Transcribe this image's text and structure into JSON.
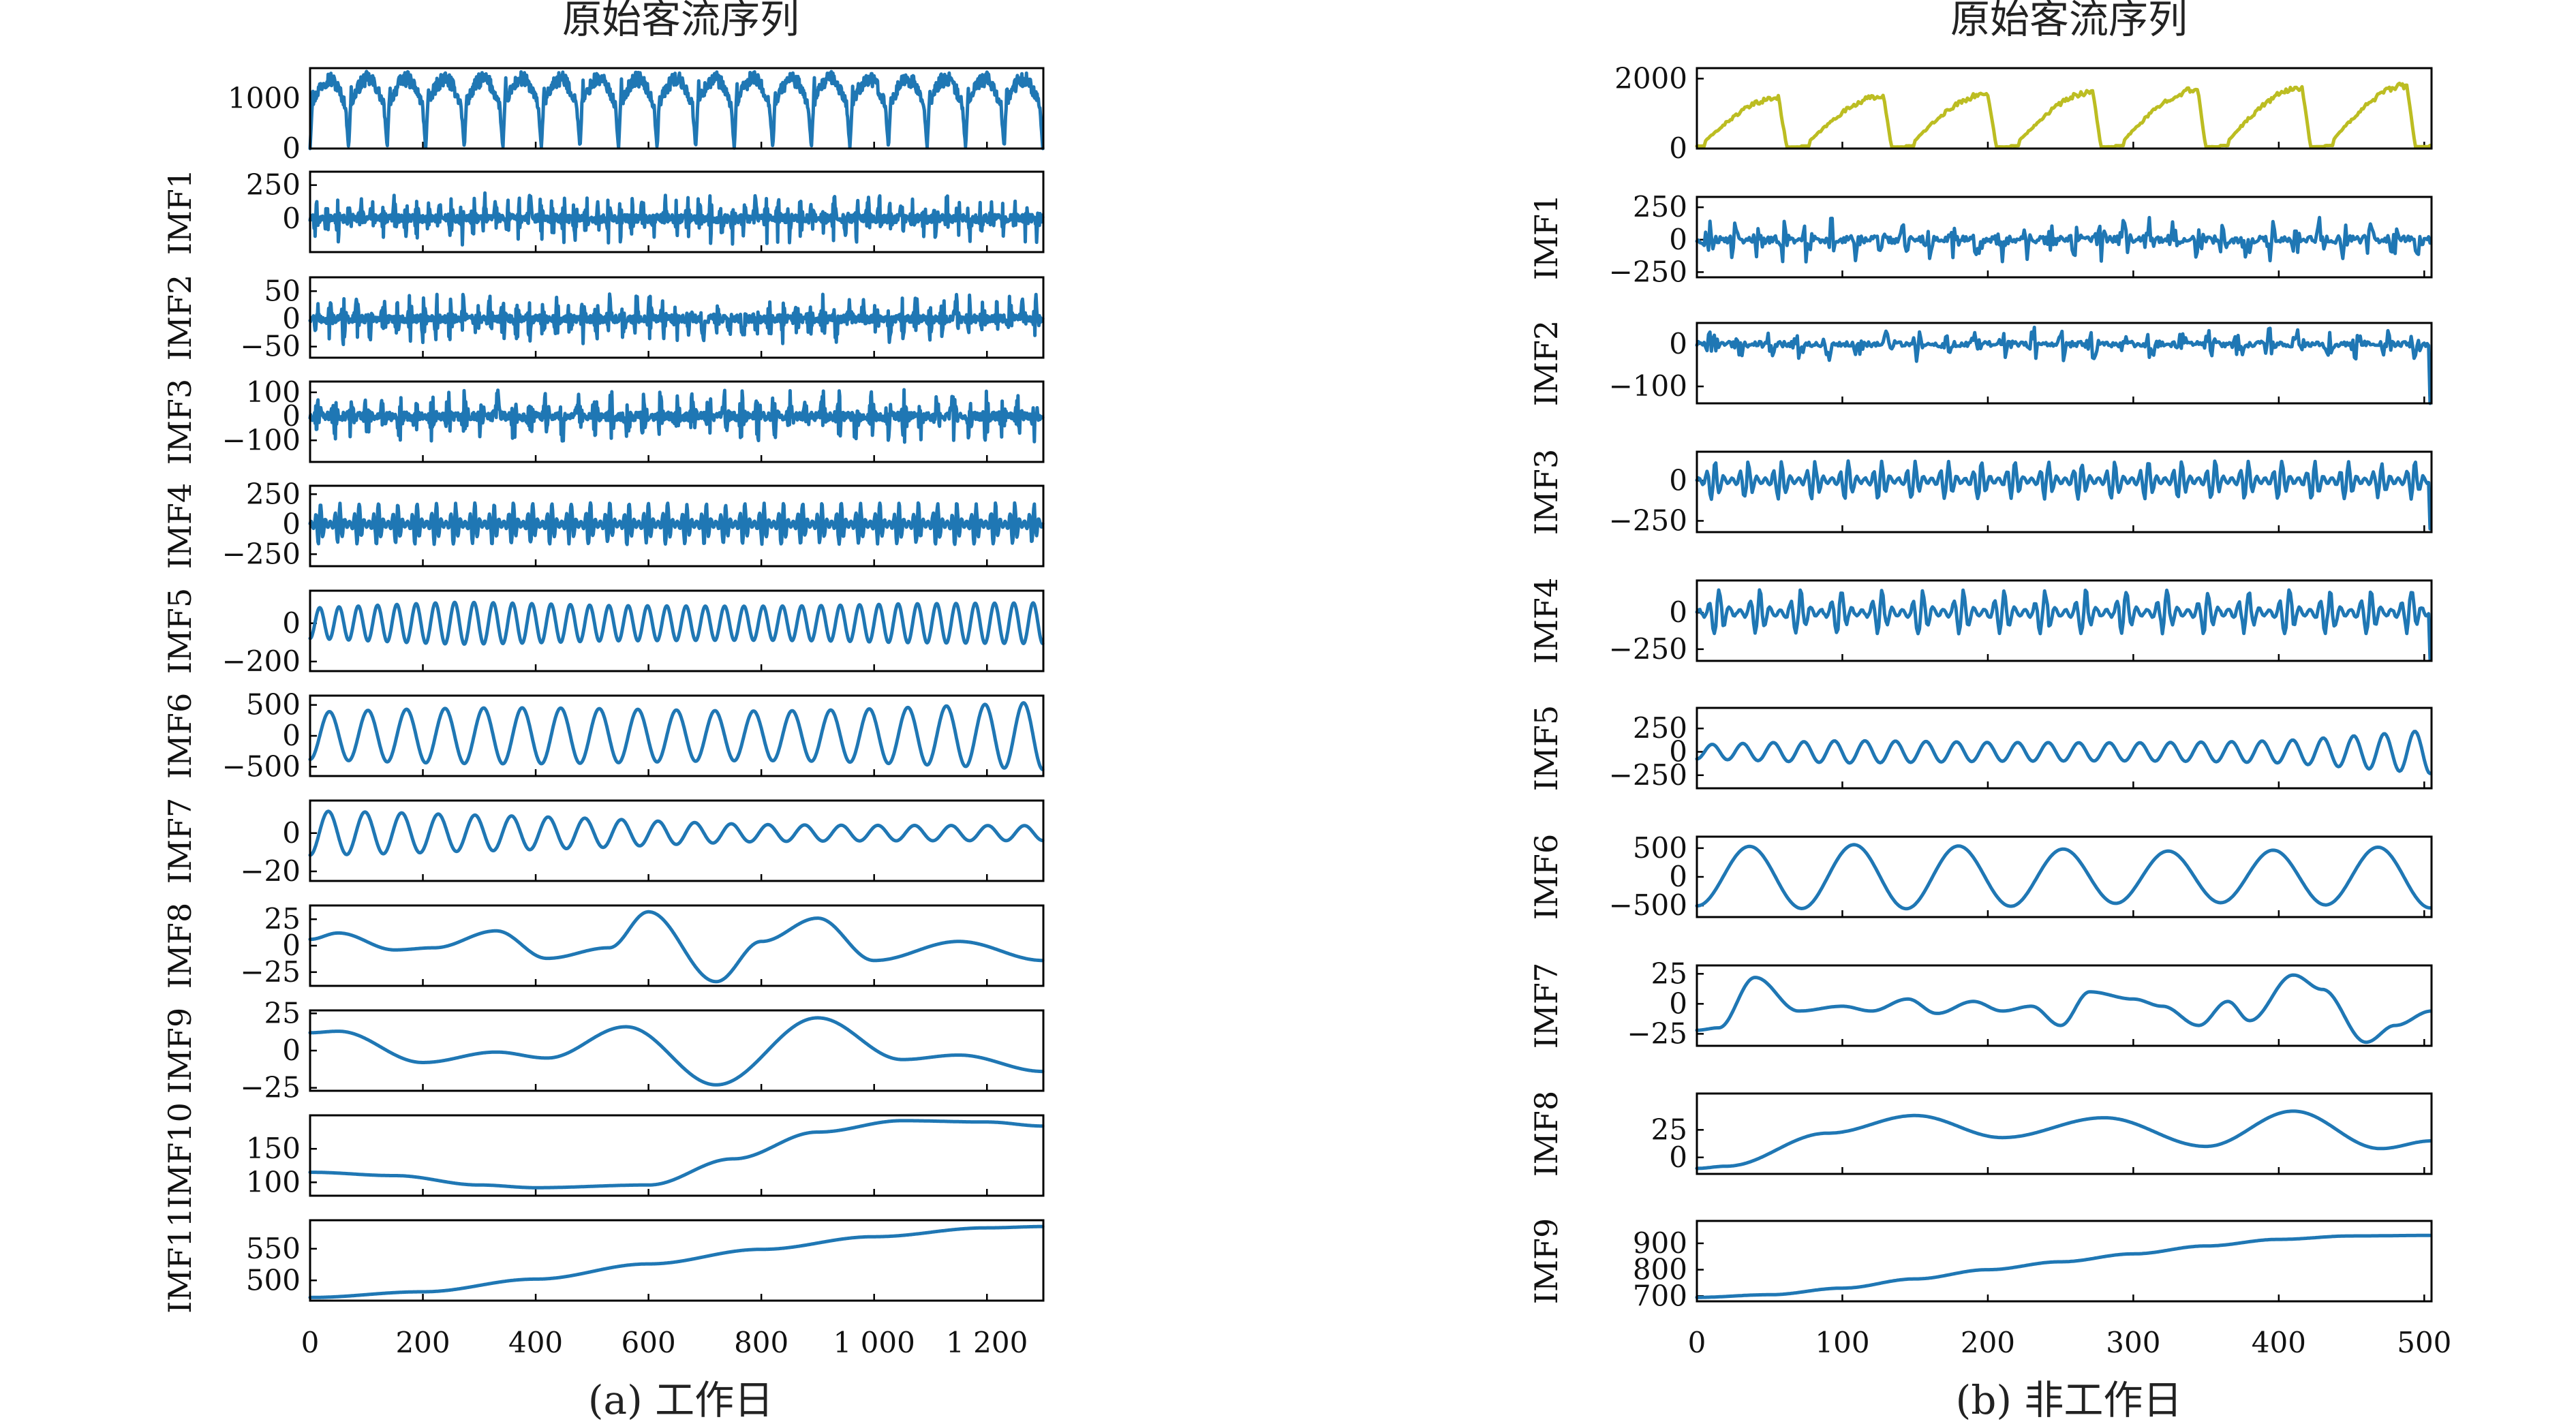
{
  "colors": {
    "imf": "#1f77b4",
    "original_b": "#bcbd22",
    "axis": "#000000"
  },
  "chart_data": [
    {
      "type": "line",
      "title": "原始客流序列",
      "caption": "(a) 工作日",
      "x_ticks": [
        0,
        200,
        400,
        600,
        800,
        1000,
        1200
      ],
      "x_tick_labels": [
        "0",
        "200",
        "400",
        "600",
        "800",
        "1 000",
        "1 200"
      ],
      "xlim": [
        0,
        1300
      ],
      "n_points": 1300,
      "grid": false,
      "subplots": [
        {
          "ylabel": "",
          "ylim": [
            0,
            1600
          ],
          "y_ticks": [
            0,
            1000
          ],
          "y_tick_labels": [
            "0",
            "1000"
          ],
          "color": "#1f77b4",
          "kind": "daily",
          "cycles": 19,
          "amplitude": 1500,
          "envelope": [
            1.0
          ]
        },
        {
          "ylabel": "IMF1",
          "ylim": [
            -250,
            350
          ],
          "y_ticks": [
            0,
            250
          ],
          "y_tick_labels": [
            "0",
            "250"
          ],
          "color": "#1f77b4",
          "kind": "noise",
          "cycles": 65,
          "amplitude": 120,
          "envelope": [
            1.0
          ]
        },
        {
          "ylabel": "IMF2",
          "ylim": [
            -70,
            75
          ],
          "y_ticks": [
            -50,
            0,
            50
          ],
          "y_tick_labels": [
            "−50",
            "0",
            "50"
          ],
          "color": "#1f77b4",
          "kind": "noise",
          "cycles": 55,
          "amplitude": 28,
          "envelope": [
            1.0
          ]
        },
        {
          "ylabel": "IMF3",
          "ylim": [
            -190,
            145
          ],
          "y_ticks": [
            -100,
            0,
            100
          ],
          "y_tick_labels": [
            "−100",
            "0",
            "100"
          ],
          "color": "#1f77b4",
          "kind": "noise",
          "cycles": 45,
          "amplitude": 70,
          "envelope": [
            1.0
          ]
        },
        {
          "ylabel": "IMF4",
          "ylim": [
            -350,
            320
          ],
          "y_ticks": [
            -250,
            0,
            250
          ],
          "y_tick_labels": [
            "−250",
            "0",
            "250"
          ],
          "color": "#1f77b4",
          "kind": "burst",
          "cycles": 38,
          "amplitude": 160,
          "envelope": [
            1.0
          ]
        },
        {
          "ylabel": "IMF5",
          "ylim": [
            -250,
            170
          ],
          "y_ticks": [
            -200,
            0
          ],
          "y_tick_labels": [
            "−200",
            "0"
          ],
          "color": "#1f77b4",
          "kind": "sine",
          "cycles": 38,
          "amplitude": 110,
          "envelope": [
            0.8,
            1.0,
            0.9,
            1.0,
            1.1,
            1.0
          ]
        },
        {
          "ylabel": "IMF6",
          "ylim": [
            -650,
            650
          ],
          "y_ticks": [
            -500,
            0,
            500
          ],
          "y_tick_labels": [
            "−500",
            "0",
            "500"
          ],
          "color": "#1f77b4",
          "kind": "sine",
          "cycles": 19,
          "amplitude": 470,
          "envelope": [
            0.9,
            0.95,
            1.0,
            1.05,
            1.15,
            1.2
          ]
        },
        {
          "ylabel": "IMF7",
          "ylim": [
            -25,
            17
          ],
          "y_ticks": [
            -20,
            0
          ],
          "y_tick_labels": [
            "−20",
            "0"
          ],
          "color": "#1f77b4",
          "kind": "sine",
          "cycles": 20,
          "amplitude": 8,
          "envelope": [
            1.6,
            1.2,
            1.0,
            0.7,
            0.6,
            0.5
          ]
        },
        {
          "ylabel": "IMF8",
          "ylim": [
            -38,
            38
          ],
          "y_ticks": [
            -25,
            0,
            25
          ],
          "y_tick_labels": [
            "−25",
            "0",
            "25"
          ],
          "color": "#1f77b4",
          "kind": "smooth",
          "xs": [
            0,
            50,
            150,
            220,
            330,
            420,
            530,
            600,
            720,
            800,
            900,
            1000,
            1150,
            1300
          ],
          "ys": [
            6,
            12,
            -4,
            -2,
            14,
            -12,
            -2,
            32,
            -34,
            4,
            26,
            -14,
            4,
            -14
          ]
        },
        {
          "ylabel": "IMF9",
          "ylim": [
            -27,
            27
          ],
          "y_ticks": [
            -25,
            0,
            25
          ],
          "y_tick_labels": [
            "−25",
            "0",
            "25"
          ],
          "color": "#1f77b4",
          "kind": "smooth",
          "xs": [
            0,
            50,
            200,
            330,
            420,
            560,
            720,
            900,
            1050,
            1150,
            1300
          ],
          "ys": [
            12,
            13,
            -8,
            -1,
            -5,
            16,
            -23,
            22,
            -6,
            -3,
            -14
          ]
        },
        {
          "ylabel": "IMF10",
          "ylim": [
            80,
            200
          ],
          "y_ticks": [
            100,
            150
          ],
          "y_tick_labels": [
            "100",
            "150"
          ],
          "color": "#1f77b4",
          "kind": "smooth",
          "xs": [
            0,
            150,
            300,
            400,
            600,
            750,
            900,
            1050,
            1200,
            1300
          ],
          "ys": [
            115,
            110,
            96,
            92,
            96,
            135,
            175,
            192,
            190,
            184
          ]
        },
        {
          "ylabel": "IMF11",
          "ylim": [
            468,
            595
          ],
          "y_ticks": [
            500,
            550
          ],
          "y_tick_labels": [
            "500",
            "550"
          ],
          "color": "#1f77b4",
          "kind": "smooth",
          "xs": [
            0,
            200,
            400,
            600,
            800,
            1000,
            1200,
            1300
          ],
          "ys": [
            473,
            482,
            502,
            526,
            549,
            569,
            583,
            585
          ]
        }
      ]
    },
    {
      "type": "line",
      "title": "原始客流序列",
      "caption": "(b) 非工作日",
      "x_ticks": [
        0,
        100,
        200,
        300,
        400,
        500
      ],
      "x_tick_labels": [
        "0",
        "100",
        "200",
        "300",
        "400",
        "500"
      ],
      "xlim": [
        0,
        505
      ],
      "n_points": 505,
      "grid": false,
      "subplots": [
        {
          "ylabel": "",
          "ylim": [
            0,
            2300
          ],
          "y_ticks": [
            0,
            2000
          ],
          "y_tick_labels": [
            "0",
            "2000"
          ],
          "color": "#bcbd22",
          "kind": "weekend",
          "cycles": 7,
          "amplitude": 1700,
          "envelope": [
            0.85,
            0.9,
            0.95,
            1.0,
            1.05,
            1.1
          ]
        },
        {
          "ylabel": "IMF1",
          "ylim": [
            -290,
            330
          ],
          "y_ticks": [
            -250,
            0,
            250
          ],
          "y_tick_labels": [
            "−250",
            "0",
            "250"
          ],
          "color": "#1f77b4",
          "kind": "noise",
          "cycles": 30,
          "amplitude": 110,
          "envelope": [
            1.0
          ]
        },
        {
          "ylabel": "IMF2",
          "ylim": [
            -140,
            50
          ],
          "y_ticks": [
            -100,
            0
          ],
          "y_tick_labels": [
            "−100",
            "0"
          ],
          "color": "#1f77b4",
          "kind": "noise",
          "cycles": 25,
          "amplitude": 25,
          "envelope": [
            1.0
          ],
          "end_drop": -140
        },
        {
          "ylabel": "IMF3",
          "ylim": [
            -320,
            180
          ],
          "y_ticks": [
            -250,
            0
          ],
          "y_tick_labels": [
            "−250",
            "0"
          ],
          "color": "#1f77b4",
          "kind": "burst",
          "cycles": 22,
          "amplitude": 110,
          "envelope": [
            1.0
          ],
          "end_drop": -300
        },
        {
          "ylabel": "IMF4",
          "ylim": [
            -330,
            220
          ],
          "y_ticks": [
            -250,
            0
          ],
          "y_tick_labels": [
            "−250",
            "0"
          ],
          "color": "#1f77b4",
          "kind": "burst",
          "cycles": 18,
          "amplitude": 140,
          "envelope": [
            1.0
          ],
          "end_drop": -320
        },
        {
          "ylabel": "IMF5",
          "ylim": [
            -390,
            470
          ],
          "y_ticks": [
            -250,
            0,
            250
          ],
          "y_tick_labels": [
            "−250",
            "0",
            "250"
          ],
          "color": "#1f77b4",
          "kind": "sine",
          "cycles": 24,
          "amplitude": 120,
          "envelope": [
            0.7,
            1.0,
            0.9,
            1.0,
            1.2,
            2.0
          ]
        },
        {
          "ylabel": "IMF6",
          "ylim": [
            -700,
            700
          ],
          "y_ticks": [
            -500,
            0,
            500
          ],
          "y_tick_labels": [
            "−500",
            "0",
            "500"
          ],
          "color": "#1f77b4",
          "kind": "sine",
          "cycles": 7,
          "amplitude": 560,
          "envelope": [
            1.0
          ]
        },
        {
          "ylabel": "IMF7",
          "ylim": [
            -35,
            32
          ],
          "y_ticks": [
            -25,
            0,
            25
          ],
          "y_tick_labels": [
            "−25",
            "0",
            "25"
          ],
          "color": "#1f77b4",
          "kind": "smooth",
          "xs": [
            0,
            15,
            40,
            70,
            100,
            120,
            145,
            165,
            190,
            210,
            230,
            250,
            270,
            300,
            320,
            345,
            365,
            380,
            410,
            430,
            460,
            480,
            505
          ],
          "ys": [
            -22,
            -20,
            22,
            -6,
            -2,
            -6,
            4,
            -8,
            2,
            -6,
            -2,
            -18,
            10,
            4,
            -2,
            -18,
            2,
            -14,
            24,
            12,
            -32,
            -18,
            -6
          ]
        },
        {
          "ylabel": "IMF8",
          "ylim": [
            -15,
            58
          ],
          "y_ticks": [
            0,
            25
          ],
          "y_tick_labels": [
            "0",
            "25"
          ],
          "color": "#1f77b4",
          "kind": "smooth",
          "xs": [
            0,
            20,
            90,
            150,
            210,
            280,
            350,
            410,
            470,
            505
          ],
          "ys": [
            -10,
            -8,
            22,
            38,
            18,
            36,
            10,
            42,
            8,
            15
          ]
        },
        {
          "ylabel": "IMF9",
          "ylim": [
            680,
            985
          ],
          "y_ticks": [
            700,
            800,
            900
          ],
          "y_tick_labels": [
            "700",
            "800",
            "900"
          ],
          "color": "#1f77b4",
          "kind": "smooth",
          "xs": [
            0,
            50,
            100,
            150,
            200,
            250,
            300,
            350,
            400,
            450,
            505
          ],
          "ys": [
            695,
            705,
            730,
            765,
            800,
            830,
            860,
            890,
            915,
            928,
            930
          ]
        }
      ]
    }
  ]
}
